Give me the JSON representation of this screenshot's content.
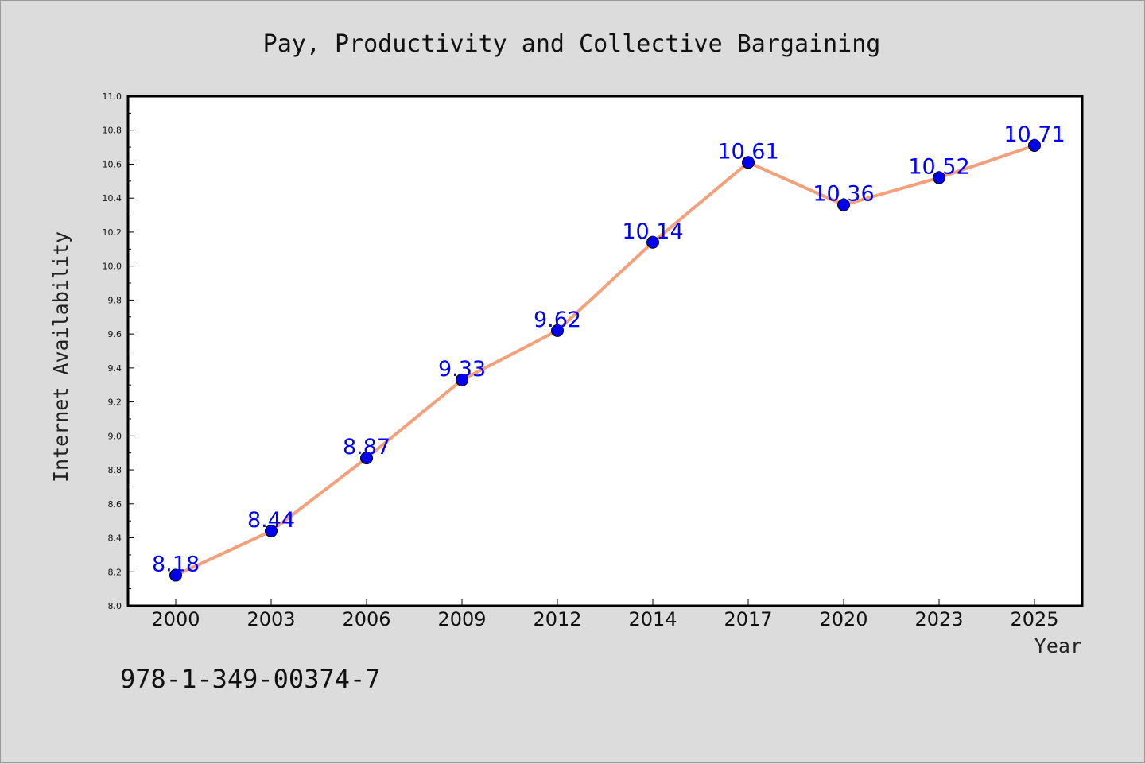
{
  "chart_data": {
    "type": "line",
    "title": "Pay, Productivity and Collective Bargaining",
    "xlabel": "Year",
    "ylabel": "Internet Availability",
    "categories": [
      "2000",
      "2003",
      "2006",
      "2009",
      "2012",
      "2014",
      "2017",
      "2020",
      "2023",
      "2025"
    ],
    "series": [
      {
        "values": [
          8.18,
          8.44,
          8.87,
          9.33,
          9.62,
          10.14,
          10.61,
          10.36,
          10.52,
          10.71
        ],
        "labels": [
          "8.18",
          "8.44",
          "8.87",
          "9.33",
          "9.62",
          "10.14",
          "10.61",
          "10.36",
          "10.52",
          "10.71"
        ],
        "line_color": "#f4a07a",
        "marker_color": "#0000ee",
        "label_color": "#0000ff"
      }
    ],
    "ylim": [
      8.0,
      11.0
    ],
    "yticks": [
      "8.0",
      "8.2",
      "8.4",
      "8.6",
      "8.8",
      "9.0",
      "9.2",
      "9.4",
      "9.6",
      "9.8",
      "10.0",
      "10.2",
      "10.4",
      "10.6",
      "10.8",
      "11.0"
    ],
    "grid": false,
    "legend": "none"
  },
  "footer": {
    "isbn": "978-1-349-00374-7"
  },
  "colors": {
    "background": "#dcdcdc",
    "plot_area": "#ffffff"
  }
}
